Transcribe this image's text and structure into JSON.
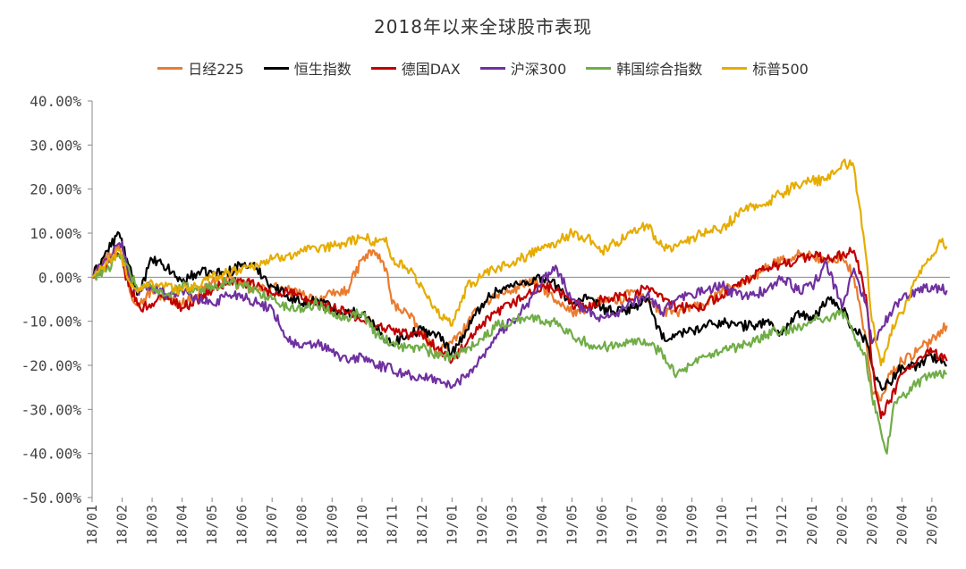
{
  "colors": {
    "nikkei": "#E97C30",
    "hangseng": "#000000",
    "dax": "#C00000",
    "csi300": "#7030A0",
    "kospi": "#70AD47",
    "sp500": "#E6AC00"
  },
  "chart_data": {
    "type": "line",
    "title": "2018年以来全球股市表现",
    "xlabel": "",
    "ylabel": "",
    "ylim": [
      -50,
      40
    ],
    "y_ticks": [
      "40.00%",
      "30.00%",
      "20.00%",
      "10.00%",
      "0.00%",
      "-10.00%",
      "-20.00%",
      "-30.00%",
      "-40.00%",
      "-50.00%"
    ],
    "y_tick_values": [
      40,
      30,
      20,
      10,
      0,
      -10,
      -20,
      -30,
      -40,
      -50
    ],
    "x_ticks": [
      "18/01",
      "18/02",
      "18/03",
      "18/04",
      "18/05",
      "18/06",
      "18/07",
      "18/08",
      "18/09",
      "18/10",
      "18/11",
      "18/12",
      "19/01",
      "19/02",
      "19/03",
      "19/04",
      "19/05",
      "19/06",
      "19/07",
      "19/08",
      "19/09",
      "19/10",
      "19/11",
      "19/12",
      "20/01",
      "20/02",
      "20/03",
      "20/04",
      "20/05"
    ],
    "x_months": [
      0,
      1,
      2,
      3,
      4,
      5,
      6,
      7,
      8,
      9,
      10,
      11,
      12,
      13,
      14,
      15,
      16,
      17,
      18,
      19,
      20,
      21,
      22,
      23,
      24,
      25,
      26,
      27,
      28
    ],
    "legend_position": "top",
    "grid": false,
    "series": [
      {
        "name": "日经225",
        "color_key": "nikkei",
        "x": [
          0,
          0.5,
          1,
          1.3,
          1.6,
          2,
          2.5,
          3,
          3.5,
          4,
          4.5,
          5,
          5.5,
          6,
          6.5,
          7,
          7.5,
          8,
          8.5,
          9,
          9.4,
          9.8,
          10,
          10.5,
          11,
          11.5,
          12,
          12.5,
          13,
          13.5,
          14,
          14.5,
          15,
          15.5,
          16,
          16.5,
          17,
          17.5,
          18,
          18.5,
          19,
          19.5,
          20,
          20.5,
          21,
          21.5,
          22,
          22.5,
          23,
          23.5,
          24,
          24.5,
          25,
          25.4,
          25.8,
          26,
          26.3,
          26.6,
          27,
          27.5,
          28,
          28.3,
          28.5
        ],
        "y": [
          0,
          5,
          7,
          -4,
          -6,
          -3,
          -5,
          -6,
          -4,
          -1,
          0,
          -2,
          -3,
          -2,
          -3,
          -4,
          -5,
          -4,
          -3,
          4,
          6,
          2,
          -6,
          -8,
          -13,
          -17,
          -15,
          -11,
          -6,
          -4,
          -3,
          -1,
          -2,
          -6,
          -8,
          -7,
          -5,
          -6,
          -3,
          -5,
          -8,
          -8,
          -7,
          -6,
          -3,
          -2,
          0,
          2,
          4,
          5,
          5,
          3,
          5,
          0,
          -14,
          -26,
          -28,
          -22,
          -19,
          -17,
          -14,
          -12,
          -11
        ]
      },
      {
        "name": "恒生指数",
        "color_key": "hangseng",
        "x": [
          0,
          0.5,
          0.9,
          1.2,
          1.5,
          2,
          2.5,
          3,
          3.5,
          4,
          4.5,
          5,
          5.5,
          6,
          6.5,
          7,
          7.5,
          8,
          8.5,
          9,
          9.5,
          10,
          10.5,
          11,
          11.5,
          12,
          12.5,
          13,
          13.5,
          14,
          14.5,
          15,
          15.5,
          16,
          16.5,
          17,
          17.5,
          18,
          18.5,
          19,
          19.5,
          20,
          20.5,
          21,
          21.5,
          22,
          22.5,
          23,
          23.5,
          24,
          24.5,
          25,
          25.4,
          25.8,
          26,
          26.3,
          26.6,
          27,
          27.5,
          28,
          28.5
        ],
        "y": [
          0,
          6,
          10,
          3,
          -4,
          4,
          2,
          -1,
          1,
          1,
          1,
          3,
          2,
          -2,
          -4,
          -6,
          -5,
          -7,
          -8,
          -8,
          -12,
          -15,
          -13,
          -12,
          -13,
          -17,
          -12,
          -6,
          -3,
          -2,
          -1,
          0,
          -2,
          -6,
          -5,
          -7,
          -8,
          -7,
          -5,
          -14,
          -13,
          -12,
          -11,
          -10,
          -11,
          -11,
          -10,
          -13,
          -8,
          -10,
          -5,
          -7,
          -12,
          -14,
          -20,
          -25,
          -24,
          -20,
          -20,
          -18,
          -20
        ]
      },
      {
        "name": "德国DAX",
        "color_key": "dax",
        "x": [
          0,
          0.5,
          0.9,
          1.3,
          1.6,
          2,
          2.5,
          3,
          3.5,
          4,
          4.5,
          5,
          5.5,
          6,
          6.5,
          7,
          7.5,
          8,
          8.5,
          9,
          9.5,
          10,
          10.5,
          11,
          11.5,
          12,
          12.5,
          13,
          13.5,
          14,
          14.5,
          15,
          15.5,
          16,
          16.5,
          17,
          17.5,
          18,
          18.5,
          19,
          19.5,
          20,
          20.5,
          21,
          21.5,
          22,
          22.5,
          23,
          23.5,
          24,
          24.5,
          25,
          25.4,
          25.8,
          26,
          26.3,
          26.6,
          27,
          27.5,
          28,
          28.5
        ],
        "y": [
          0,
          3,
          5,
          -3,
          -7,
          -6,
          -4,
          -7,
          -5,
          -3,
          -1,
          -1,
          -2,
          -4,
          -3,
          -5,
          -6,
          -7,
          -8,
          -10,
          -11,
          -12,
          -13,
          -13,
          -16,
          -19,
          -15,
          -11,
          -8,
          -6,
          -4,
          -2,
          -3,
          -6,
          -7,
          -5,
          -4,
          -5,
          -2,
          -4,
          -7,
          -7,
          -6,
          -4,
          -2,
          0,
          2,
          3,
          4,
          5,
          4,
          5,
          6,
          -4,
          -20,
          -32,
          -28,
          -22,
          -19,
          -17,
          -19
        ]
      },
      {
        "name": "沪深300",
        "color_key": "csi300",
        "x": [
          0,
          0.5,
          1,
          1.3,
          1.6,
          2,
          2.5,
          3,
          3.5,
          4,
          4.5,
          5,
          5.5,
          6,
          6.5,
          7,
          7.5,
          8,
          8.5,
          9,
          9.5,
          10,
          10.5,
          11,
          11.5,
          12,
          12.5,
          13,
          13.5,
          14,
          14.5,
          15,
          15.5,
          16,
          16.5,
          17,
          17.5,
          18,
          18.5,
          19,
          19.5,
          20,
          20.5,
          21,
          21.5,
          22,
          22.5,
          23,
          23.5,
          24,
          24.5,
          25,
          25.4,
          25.8,
          26,
          26.3,
          26.6,
          27,
          27.5,
          28,
          28.5
        ],
        "y": [
          0,
          4,
          8,
          -2,
          -3,
          -2,
          -4,
          -3,
          -5,
          -6,
          -4,
          -4,
          -6,
          -7,
          -14,
          -16,
          -15,
          -17,
          -19,
          -18,
          -20,
          -21,
          -22,
          -23,
          -23,
          -25,
          -22,
          -18,
          -13,
          -10,
          -6,
          -1,
          2,
          -5,
          -8,
          -9,
          -8,
          -6,
          -4,
          -8,
          -5,
          -4,
          -3,
          -2,
          -4,
          -4,
          -3,
          0,
          -3,
          -2,
          3,
          -7,
          2,
          -6,
          -15,
          -12,
          -8,
          -5,
          -3,
          -2,
          -3
        ]
      },
      {
        "name": "韩国综合指数",
        "color_key": "kospi",
        "x": [
          0,
          0.5,
          1,
          1.3,
          1.6,
          2,
          2.5,
          3,
          3.5,
          4,
          4.5,
          5,
          5.5,
          6,
          6.5,
          7,
          7.5,
          8,
          8.5,
          9,
          9.5,
          10,
          10.5,
          11,
          11.5,
          12,
          12.5,
          13,
          13.5,
          14,
          14.5,
          15,
          15.5,
          16,
          16.5,
          17,
          17.5,
          18,
          18.5,
          19,
          19.5,
          20,
          20.5,
          21,
          21.5,
          22,
          22.5,
          23,
          23.5,
          24,
          24.5,
          25,
          25.4,
          25.8,
          26,
          26.3,
          26.5,
          26.7,
          27,
          27.5,
          28,
          28.5
        ],
        "y": [
          0,
          2,
          5,
          0,
          -3,
          -2,
          -4,
          -2,
          -3,
          -2,
          -1,
          -2,
          -3,
          -5,
          -7,
          -7,
          -6,
          -8,
          -9,
          -8,
          -13,
          -15,
          -16,
          -16,
          -18,
          -18,
          -16,
          -14,
          -11,
          -10,
          -9,
          -10,
          -10,
          -13,
          -15,
          -16,
          -15,
          -14,
          -15,
          -17,
          -22,
          -20,
          -18,
          -17,
          -16,
          -15,
          -13,
          -12,
          -12,
          -10,
          -9,
          -8,
          -13,
          -18,
          -27,
          -35,
          -40,
          -30,
          -27,
          -24,
          -22,
          -22
        ]
      },
      {
        "name": "标普500",
        "color_key": "sp500",
        "x": [
          0,
          0.5,
          0.9,
          1.3,
          1.6,
          2,
          2.5,
          3,
          3.5,
          4,
          4.5,
          5,
          5.5,
          6,
          6.5,
          7,
          7.5,
          8,
          8.5,
          9,
          9.5,
          9.8,
          10,
          10.5,
          11,
          11.5,
          12,
          12.5,
          13,
          13.5,
          14,
          14.5,
          15,
          15.5,
          16,
          16.5,
          17,
          17.5,
          18,
          18.5,
          19,
          19.5,
          20,
          20.5,
          21,
          21.5,
          22,
          22.5,
          23,
          23.5,
          24,
          24.5,
          25,
          25.4,
          25.8,
          26,
          26.3,
          26.6,
          27,
          27.5,
          28,
          28.3,
          28.5
        ],
        "y": [
          0,
          3,
          6,
          -2,
          -3,
          -1,
          -2,
          -3,
          -2,
          0,
          1,
          2,
          3,
          4,
          5,
          6,
          6,
          7,
          8,
          9,
          8,
          9,
          4,
          2,
          -2,
          -8,
          -11,
          -2,
          0,
          2,
          3,
          5,
          7,
          8,
          10,
          9,
          6,
          8,
          10,
          12,
          7,
          7,
          9,
          10,
          11,
          14,
          16,
          17,
          19,
          21,
          22,
          22,
          26,
          25,
          5,
          -10,
          -20,
          -13,
          -8,
          0,
          5,
          8,
          7
        ]
      }
    ]
  }
}
